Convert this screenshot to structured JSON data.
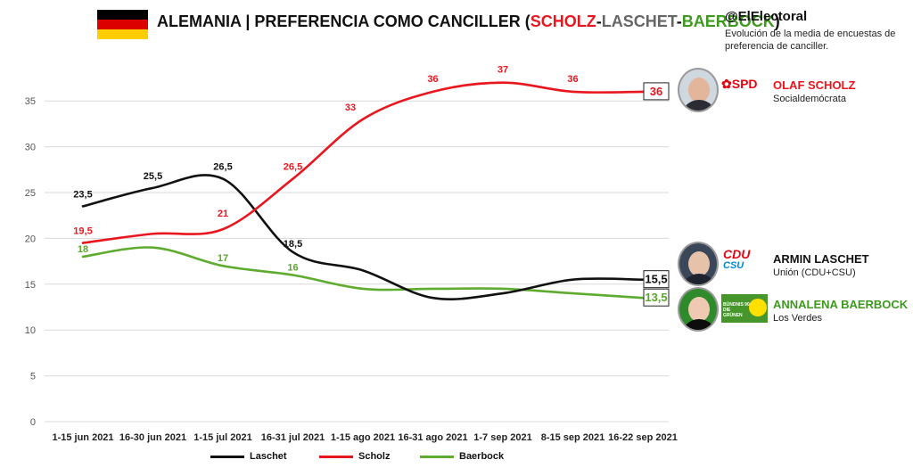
{
  "header": {
    "title_prefix": "ALEMANIA | PREFERENCIA COMO CANCILLER (",
    "title_scholz": "SCHOLZ",
    "title_sep1": "-",
    "title_laschet": "LASCHET",
    "title_sep2": "-",
    "title_baerbock": "BAERBOCK",
    "title_suffix": ")",
    "handle": "@ElElectoral",
    "subtitle": "Evolución de la media de encuestas de preferencia de canciller."
  },
  "colors": {
    "scholz": "#e8161e",
    "laschet": "#111111",
    "baerbock": "#5eab2f",
    "flag_black": "#000000",
    "flag_red": "#dd0000",
    "flag_gold": "#ffce00",
    "cdu_red": "#e30613",
    "csu_blue": "#0088d1",
    "greens_green": "#46962b"
  },
  "candidates": [
    {
      "key": "scholz",
      "party_logo_text": "SPD",
      "name": "OLAF SCHOLZ",
      "party": "Socialdemócrata",
      "logo_icon": "spd-rose-icon"
    },
    {
      "key": "laschet",
      "party_logo_text": "CDU",
      "party_logo_text2": "CSU",
      "name": "ARMIN LASCHET",
      "party": "Unión (CDU+CSU)",
      "logo_icon": "cdu-csu-logo"
    },
    {
      "key": "baerbock",
      "party_logo_text": "BÜNDNIS 90 DIE GRÜNEN",
      "name": "ANNALENA BAERBOCK",
      "party": "Los Verdes",
      "logo_icon": "sunflower-icon"
    }
  ],
  "chart_data": {
    "type": "line",
    "categories": [
      "1-15 jun 2021",
      "16-30 jun 2021",
      "1-15 jul 2021",
      "16-31 jul 2021",
      "1-15 ago 2021",
      "16-31 ago 2021",
      "1-7 sep 2021",
      "8-15 sep 2021",
      "16-22 sep 2021"
    ],
    "ylim": [
      0,
      40
    ],
    "yticks": [
      0,
      5,
      10,
      15,
      20,
      25,
      30,
      35
    ],
    "grid": true,
    "legend_position": "bottom",
    "series": [
      {
        "key": "laschet",
        "name": "Laschet",
        "values": [
          23.5,
          25.5,
          26.5,
          18.5,
          16.5,
          13.5,
          14,
          15.5,
          15.5
        ],
        "labels": [
          "23,5",
          "25,5",
          "26,5",
          "18,5",
          "",
          "",
          "",
          "",
          "15,5"
        ]
      },
      {
        "key": "scholz",
        "name": "Scholz",
        "values": [
          19.5,
          20.5,
          21,
          26.5,
          33,
          36,
          37,
          36,
          36
        ],
        "labels": [
          "19,5",
          "",
          "21",
          "26,5",
          "33",
          "36",
          "37",
          "36",
          "36"
        ]
      },
      {
        "key": "baerbock",
        "name": "Baerbock",
        "values": [
          18,
          19,
          17,
          16,
          14.5,
          14.5,
          14.5,
          14,
          13.5
        ],
        "labels": [
          "18",
          "",
          "17",
          "16",
          "",
          "",
          "",
          "",
          "13,5"
        ]
      }
    ]
  }
}
